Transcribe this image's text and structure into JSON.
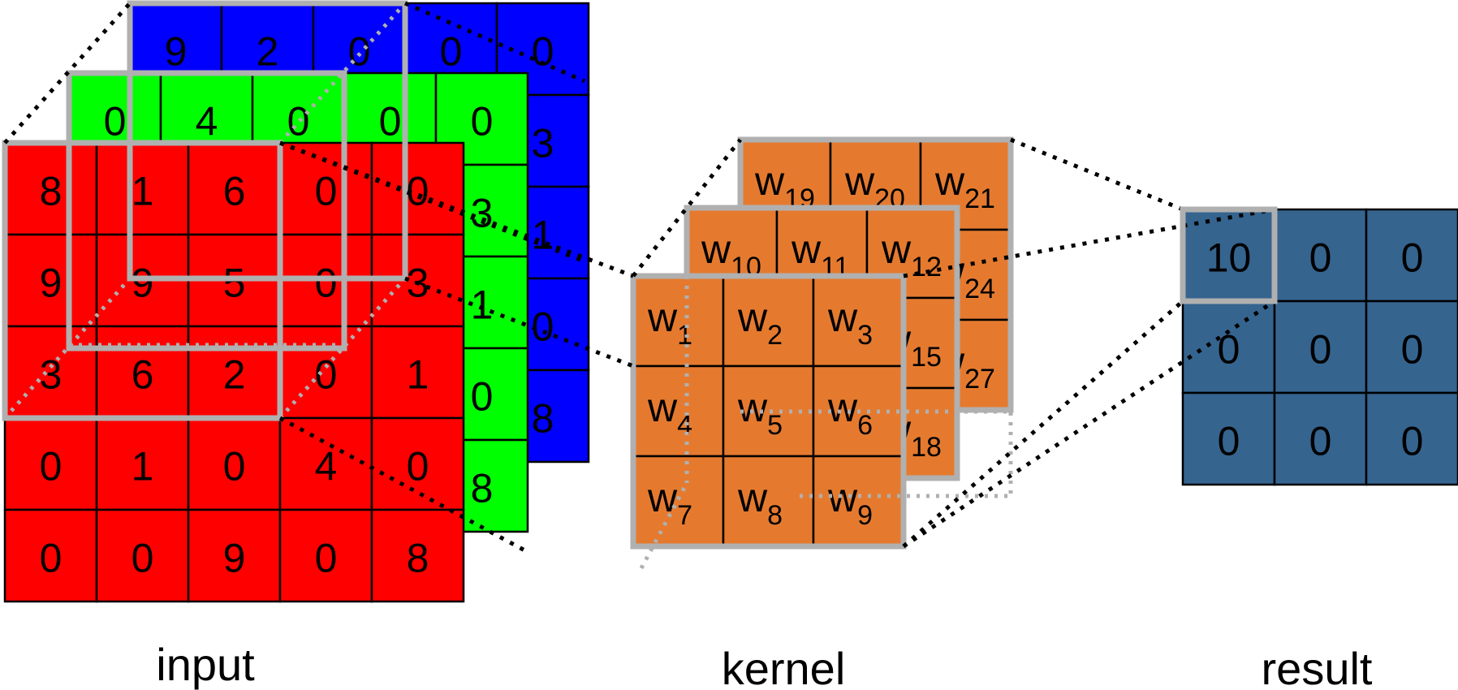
{
  "colors": {
    "input_channels": [
      "#0000ff",
      "#00ff00",
      "#ff0000"
    ],
    "kernel": "#e57a2f",
    "result": "#35648f",
    "frame": "#b0b0b0",
    "grid_line": "#000000"
  },
  "input": {
    "label": "input",
    "channels": [
      {
        "name": "blue-channel",
        "rows": [
          [
            "9",
            "2",
            "0",
            "0",
            "0"
          ],
          [
            "",
            "",
            "",
            "",
            "3"
          ],
          [
            "",
            "",
            "",
            "",
            "1"
          ],
          [
            "",
            "",
            "",
            "",
            "0"
          ],
          [
            "",
            "",
            "",
            "",
            "8"
          ]
        ]
      },
      {
        "name": "green-channel",
        "rows": [
          [
            "0",
            "4",
            "0",
            "0",
            "0"
          ],
          [
            "",
            "",
            "",
            "",
            "3"
          ],
          [
            "",
            "",
            "",
            "",
            "1"
          ],
          [
            "",
            "",
            "",
            "",
            "0"
          ],
          [
            "",
            "",
            "",
            "",
            "8"
          ]
        ]
      },
      {
        "name": "red-channel",
        "rows": [
          [
            "8",
            "1",
            "6",
            "0",
            "0"
          ],
          [
            "9",
            "9",
            "5",
            "0",
            "3"
          ],
          [
            "3",
            "6",
            "2",
            "0",
            "1"
          ],
          [
            "0",
            "1",
            "0",
            "4",
            "0"
          ],
          [
            "0",
            "0",
            "9",
            "0",
            "8"
          ]
        ]
      }
    ]
  },
  "kernel": {
    "label": "kernel",
    "layers": [
      {
        "name": "kernel-back",
        "cells": [
          [
            "w",
            "19"
          ],
          [
            "w",
            "20"
          ],
          [
            "w",
            "21"
          ],
          [
            "",
            ""
          ],
          [
            "",
            ""
          ],
          [
            "w",
            "24"
          ],
          [
            "",
            ""
          ],
          [
            "",
            ""
          ],
          [
            "w",
            "27"
          ]
        ]
      },
      {
        "name": "kernel-middle",
        "cells": [
          [
            "w",
            "10"
          ],
          [
            "w",
            "11"
          ],
          [
            "w",
            "12"
          ],
          [
            "",
            ""
          ],
          [
            "",
            ""
          ],
          [
            "w",
            "15"
          ],
          [
            "",
            ""
          ],
          [
            "",
            ""
          ],
          [
            "w",
            "18"
          ]
        ]
      },
      {
        "name": "kernel-front",
        "cells": [
          [
            "w",
            "1"
          ],
          [
            "w",
            "2"
          ],
          [
            "w",
            "3"
          ],
          [
            "w",
            "4"
          ],
          [
            "w",
            "5"
          ],
          [
            "w",
            "6"
          ],
          [
            "w",
            "7"
          ],
          [
            "w",
            "8"
          ],
          [
            "w",
            "9"
          ]
        ]
      }
    ]
  },
  "result": {
    "label": "result",
    "rows": [
      [
        "10",
        "0",
        "0"
      ],
      [
        "0",
        "0",
        "0"
      ],
      [
        "0",
        "0",
        "0"
      ]
    ]
  }
}
